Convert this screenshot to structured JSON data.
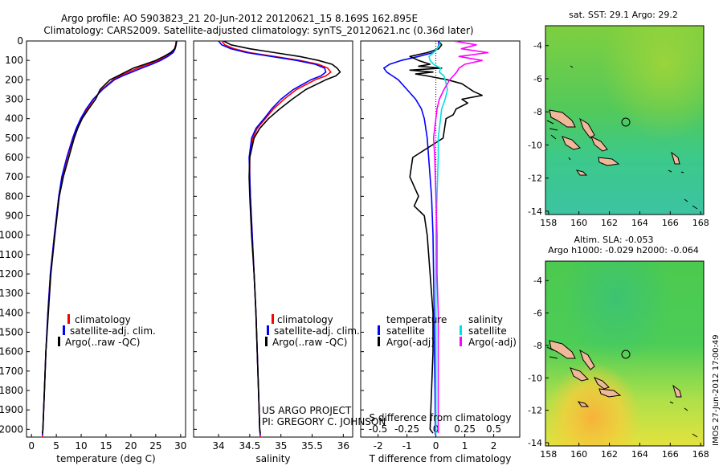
{
  "header": {
    "title_line1": "Argo profile: AO 5903823_21 20-Jun-2012 20120621_15 8.169S 162.895E",
    "title_line2": "Climatology: CARS2009. Satellite-adjusted climatology: synTS_20120621.nc (0.36d later)"
  },
  "colors": {
    "climatology": "#ff0000",
    "satellite_adj": "#0000ff",
    "argo": "#000000",
    "temp_sat": "#0000ff",
    "sal_sat": "#00e0e0",
    "sal_argo": "#ff00ff",
    "land": "#f0b898",
    "sst_field": "#3fcf5f",
    "sla_field": "#4ed04e"
  },
  "depth_axis": {
    "ticks": [
      0,
      100,
      200,
      300,
      400,
      500,
      600,
      700,
      800,
      900,
      1000,
      1100,
      1200,
      1300,
      1400,
      1500,
      1600,
      1700,
      1800,
      1900,
      2000
    ],
    "range": [
      0,
      2040
    ]
  },
  "credits": {
    "line1": "US ARGO PROJECT",
    "line2": "PI: GREGORY C. JOHNSON"
  },
  "stamp": "IMOS 27-Jun-2012 17:00:49",
  "chart_data": [
    {
      "id": "temperature",
      "type": "line",
      "xlabel": "temperature (deg C)",
      "ylabel": "",
      "xlim": [
        -1,
        31
      ],
      "ylim": [
        2040,
        0
      ],
      "xticks": [
        0,
        5,
        10,
        15,
        20,
        25,
        30
      ],
      "legend": [
        "climatology",
        "satellite-adj. clim.",
        "Argo(..raw -QC)"
      ],
      "legend_position": "lower-middle",
      "series": [
        {
          "name": "climatology",
          "color_key": "climatology",
          "depth": [
            0,
            20,
            40,
            60,
            80,
            100,
            120,
            140,
            160,
            180,
            200,
            250,
            300,
            350,
            400,
            450,
            500,
            600,
            700,
            800,
            1000,
            1200,
            1400,
            1600,
            1800,
            2000,
            2040
          ],
          "values": [
            29.1,
            29.0,
            28.8,
            28.2,
            27.0,
            25.5,
            23.5,
            21.4,
            19.5,
            17.8,
            16.4,
            14.2,
            12.5,
            11.2,
            10.1,
            9.1,
            8.4,
            7.2,
            6.2,
            5.5,
            4.6,
            3.8,
            3.3,
            2.9,
            2.6,
            2.3,
            2.2
          ]
        },
        {
          "name": "satellite-adj. clim.",
          "color_key": "satellite_adj",
          "depth": [
            0,
            20,
            40,
            60,
            80,
            100,
            120,
            140,
            160,
            180,
            200,
            250,
            300,
            350,
            400,
            450,
            500,
            600,
            700,
            800,
            1000,
            1200,
            1400,
            1600,
            1800,
            2000,
            2030
          ],
          "values": [
            29.2,
            29.1,
            28.9,
            28.5,
            27.4,
            26.0,
            24.2,
            22.2,
            20.2,
            18.3,
            16.7,
            14.3,
            12.4,
            11.0,
            9.9,
            9.0,
            8.3,
            7.1,
            6.1,
            5.5,
            4.6,
            3.8,
            3.3,
            2.9,
            2.6,
            2.3,
            2.2
          ]
        },
        {
          "name": "Argo(..raw -QC)",
          "color_key": "argo",
          "depth": [
            0,
            20,
            40,
            60,
            80,
            100,
            120,
            140,
            160,
            180,
            200,
            250,
            300,
            350,
            400,
            450,
            500,
            600,
            700,
            800,
            1000,
            1200,
            1400,
            1600,
            1800,
            2000,
            2020
          ],
          "values": [
            29.2,
            29.1,
            28.8,
            28.0,
            26.6,
            25.0,
            22.8,
            20.5,
            18.9,
            17.4,
            15.8,
            13.8,
            12.9,
            11.5,
            10.2,
            9.3,
            8.6,
            7.5,
            6.4,
            5.6,
            4.7,
            3.9,
            3.4,
            2.9,
            2.6,
            2.3,
            2.2
          ]
        }
      ]
    },
    {
      "id": "salinity",
      "type": "line",
      "xlabel": "salinity",
      "ylabel": "",
      "xlim": [
        33.6,
        36.15
      ],
      "ylim": [
        2040,
        0
      ],
      "xticks": [
        34,
        34.5,
        35,
        35.5,
        36
      ],
      "legend": [
        "climatology",
        "satellite-adj. clim.",
        "Argo(..raw -QC)"
      ],
      "legend_position": "lower-middle",
      "series": [
        {
          "name": "climatology",
          "color_key": "climatology",
          "depth": [
            0,
            20,
            40,
            60,
            80,
            100,
            120,
            140,
            160,
            180,
            200,
            250,
            300,
            350,
            400,
            450,
            500,
            600,
            700,
            800,
            1000,
            1200,
            1400,
            1600,
            1800,
            2000,
            2040
          ],
          "values": [
            34.05,
            34.1,
            34.25,
            34.5,
            34.9,
            35.3,
            35.6,
            35.75,
            35.8,
            35.72,
            35.55,
            35.25,
            35.05,
            34.88,
            34.75,
            34.62,
            34.55,
            34.5,
            34.5,
            34.51,
            34.54,
            34.57,
            34.6,
            34.62,
            34.64,
            34.66,
            34.67
          ]
        },
        {
          "name": "satellite-adj. clim.",
          "color_key": "satellite_adj",
          "depth": [
            0,
            20,
            40,
            60,
            80,
            100,
            120,
            140,
            160,
            180,
            200,
            250,
            300,
            350,
            400,
            450,
            500,
            600,
            700,
            800,
            1000,
            1200,
            1400,
            1600,
            1800,
            2000,
            2030
          ],
          "values": [
            34.0,
            34.05,
            34.2,
            34.45,
            34.85,
            35.25,
            35.55,
            35.7,
            35.72,
            35.64,
            35.48,
            35.2,
            35.0,
            34.85,
            34.73,
            34.6,
            34.53,
            34.49,
            34.5,
            34.51,
            34.54,
            34.57,
            34.6,
            34.62,
            34.64,
            34.66,
            34.67
          ]
        },
        {
          "name": "Argo(..raw -QC)",
          "color_key": "argo",
          "depth": [
            0,
            20,
            40,
            60,
            80,
            100,
            120,
            140,
            160,
            180,
            200,
            250,
            300,
            350,
            400,
            450,
            500,
            600,
            700,
            800,
            1000,
            1200,
            1400,
            1600,
            1800,
            2000,
            2020
          ],
          "values": [
            34.08,
            34.2,
            34.5,
            34.9,
            35.3,
            35.6,
            35.82,
            35.9,
            35.95,
            35.88,
            35.72,
            35.4,
            35.18,
            34.98,
            34.8,
            34.66,
            34.57,
            34.5,
            34.49,
            34.5,
            34.53,
            34.57,
            34.6,
            34.62,
            34.64,
            34.66,
            34.67
          ]
        }
      ]
    },
    {
      "id": "difference",
      "type": "line",
      "xlabel": "T difference from climatology",
      "xlabel_top": "S difference from climatology",
      "ylabel": "",
      "xlim": [
        -2.6,
        2.9
      ],
      "ylim": [
        2040,
        0
      ],
      "xticks": [
        -2,
        -1,
        0,
        1,
        2
      ],
      "xticks_top_labels": [
        "-0.5",
        "-0.25",
        "0",
        "0.25",
        "0.5"
      ],
      "xticks_top_values": [
        -0.5,
        -0.25,
        0,
        0.25,
        0.5
      ],
      "s_scale": 4,
      "legend_left_title": "temperature",
      "legend_right_title": "salinity",
      "legend": [
        "satellite",
        "Argo(-adj)",
        "satellite",
        "Argo(-adj)"
      ],
      "legend_position": "lower-middle",
      "series": [
        {
          "name": "T satellite",
          "color_key": "temp_sat",
          "var": "T",
          "depth": [
            0,
            20,
            40,
            60,
            80,
            100,
            120,
            140,
            160,
            180,
            200,
            250,
            300,
            350,
            400,
            500,
            600,
            700,
            800,
            1000,
            1200,
            1400,
            1600,
            1800,
            2000,
            2030
          ],
          "values": [
            0.1,
            0.1,
            0.05,
            -0.1,
            -0.6,
            -1.2,
            -1.6,
            -1.8,
            -1.7,
            -1.5,
            -1.3,
            -1.0,
            -0.7,
            -0.5,
            -0.4,
            -0.3,
            -0.25,
            -0.2,
            -0.15,
            -0.1,
            -0.08,
            -0.06,
            -0.05,
            -0.03,
            -0.02,
            -0.02
          ]
        },
        {
          "name": "T Argo(-adj)",
          "color_key": "argo",
          "var": "T",
          "depth": [
            0,
            20,
            40,
            60,
            80,
            100,
            120,
            130,
            140,
            150,
            160,
            170,
            180,
            200,
            220,
            240,
            260,
            280,
            300,
            320,
            350,
            380,
            400,
            450,
            500,
            600,
            700,
            800,
            850,
            900,
            1000,
            1200,
            1400,
            1600,
            1800,
            2000,
            2020
          ],
          "values": [
            0.1,
            0.2,
            0.1,
            -0.3,
            -0.9,
            -0.6,
            -0.2,
            -0.6,
            0.2,
            -0.9,
            -0.1,
            -0.7,
            -0.3,
            0.4,
            0.9,
            1.1,
            1.3,
            1.6,
            0.9,
            1.1,
            0.7,
            0.6,
            0.35,
            0.3,
            0.25,
            -0.8,
            -0.9,
            -0.6,
            -0.75,
            -0.4,
            -0.3,
            -0.2,
            -0.1,
            -0.1,
            -0.15,
            -0.2,
            -0.1
          ]
        },
        {
          "name": "S satellite",
          "color_key": "sal_sat",
          "var": "S",
          "depth": [
            0,
            20,
            40,
            60,
            80,
            100,
            120,
            140,
            160,
            180,
            200,
            250,
            300,
            350,
            400,
            500,
            600,
            800,
            1000,
            1200,
            1400,
            1600,
            1800,
            2000,
            2030
          ],
          "values": [
            0.04,
            0.03,
            0.01,
            -0.02,
            -0.06,
            -0.05,
            -0.02,
            0.04,
            0.03,
            0.07,
            0.08,
            0.1,
            0.08,
            0.05,
            0.04,
            0.02,
            0.02,
            0.01,
            0.0,
            0.0,
            0.0,
            0.0,
            0.0,
            0.0,
            0.0
          ]
        },
        {
          "name": "S Argo(-adj)",
          "color_key": "sal_argo",
          "var": "S",
          "depth": [
            0,
            20,
            40,
            60,
            80,
            100,
            120,
            140,
            160,
            180,
            200,
            250,
            300,
            350,
            400,
            500,
            600,
            800,
            1000,
            1200,
            1400,
            1600,
            1800,
            2000,
            2020
          ],
          "values": [
            0.15,
            0.35,
            0.22,
            0.45,
            0.2,
            0.4,
            0.25,
            0.2,
            0.18,
            0.15,
            0.12,
            0.07,
            0.03,
            0.01,
            0.0,
            -0.02,
            -0.01,
            0.0,
            0.01,
            0.01,
            0.02,
            0.02,
            0.02,
            0.02,
            0.02
          ]
        }
      ]
    },
    {
      "id": "sst_map",
      "type": "heatmap",
      "title": "sat. SST: 29.1 Argo: 29.2",
      "xlim": [
        157.8,
        168.2
      ],
      "ylim": [
        -14.2,
        -2.8
      ],
      "xticks": [
        158,
        160,
        162,
        164,
        166,
        168
      ],
      "yticks": [
        -14,
        -12,
        -10,
        -8,
        -6,
        -4
      ],
      "float_position": {
        "lon": 162.895,
        "lat": -8.169
      }
    },
    {
      "id": "sla_map",
      "type": "heatmap",
      "title": "Altim. SLA: -0.053",
      "subtitle": "Argo h1000: -0.029 h2000: -0.064",
      "xlim": [
        157.8,
        168.2
      ],
      "ylim": [
        -14.2,
        -2.8
      ],
      "xticks": [
        158,
        160,
        162,
        164,
        166,
        168
      ],
      "yticks": [
        -14,
        -12,
        -10,
        -8,
        -6,
        -4
      ],
      "float_position": {
        "lon": 162.895,
        "lat": -8.169
      }
    }
  ]
}
